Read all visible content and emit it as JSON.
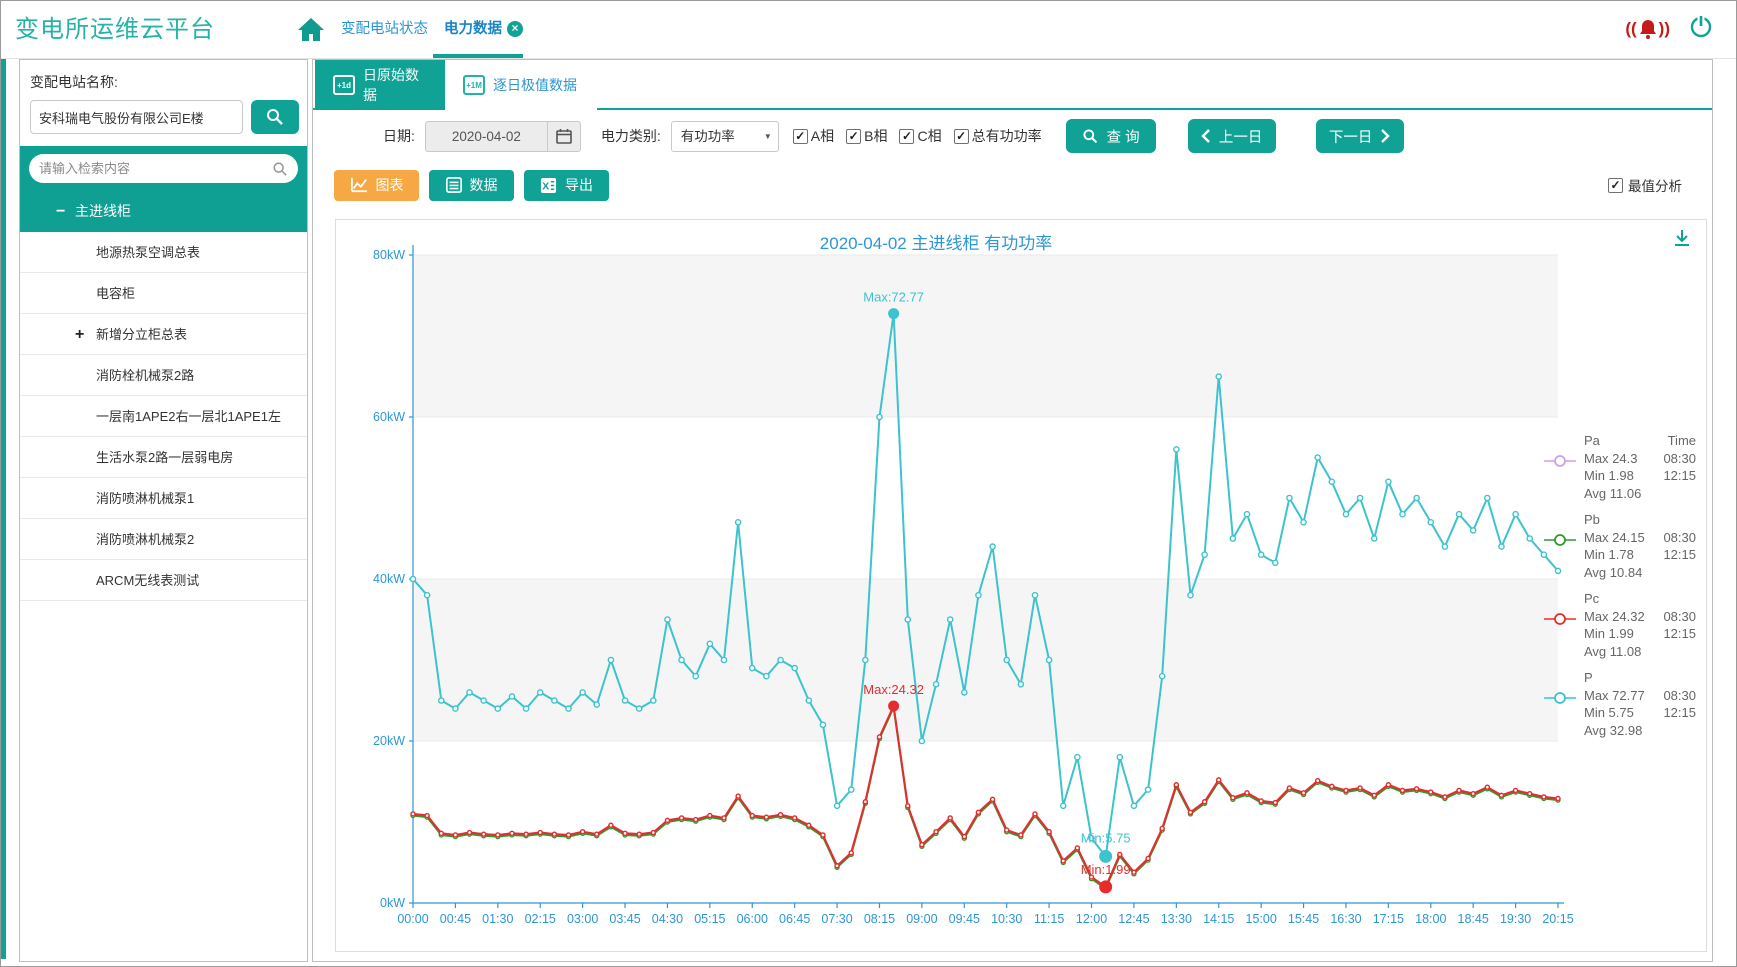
{
  "app": {
    "title": "变电所运维云平台"
  },
  "icons": {
    "minus": "−",
    "plus": "+",
    "check": "✓",
    "dropdown": "▼",
    "close": "×"
  },
  "header": {
    "tabs": [
      {
        "label": "变配电站状态",
        "active": false
      },
      {
        "label": "电力数据",
        "active": true,
        "closable": true
      }
    ]
  },
  "sidebar": {
    "station_label": "变配电站名称:",
    "station_value": "安科瑞电气股份有限公司E楼",
    "search_placeholder": "请输入检索内容",
    "tree": [
      {
        "label": "主进线柜",
        "active": true,
        "expander": "minus",
        "root": true
      },
      {
        "label": "地源热泵空调总表"
      },
      {
        "label": "电容柜"
      },
      {
        "label": "新增分立柜总表",
        "expander": "plus"
      },
      {
        "label": "消防栓机械泵2路"
      },
      {
        "label": "一层南1APE2右一层北1APE1左"
      },
      {
        "label": "生活水泵2路一层弱电房"
      },
      {
        "label": "消防喷淋机械泵1"
      },
      {
        "label": "消防喷淋机械泵2"
      },
      {
        "label": "ARCM无线表测试"
      }
    ]
  },
  "subtabs": [
    {
      "label": "日原始数据",
      "badge": "+1d",
      "active": true
    },
    {
      "label": "逐日极值数据",
      "badge": "+1M",
      "active": false
    }
  ],
  "filters": {
    "date_label": "日期:",
    "date_value": "2020-04-02",
    "category_label": "电力类别:",
    "category_value": "有功功率",
    "checkboxes": [
      {
        "label": "A相",
        "checked": true
      },
      {
        "label": "B相",
        "checked": true
      },
      {
        "label": "C相",
        "checked": true
      },
      {
        "label": "总有功功率",
        "checked": true
      }
    ],
    "query_button": "查 询",
    "prev_button": "上一日",
    "next_button": "下一日"
  },
  "actions": {
    "chart_button": "图表",
    "data_button": "数据",
    "export_button": "导出",
    "max_analysis_label": "最值分析",
    "max_analysis_checked": true
  },
  "chart_data": {
    "type": "line",
    "title": "2020-04-02  主进线柜  有功功率",
    "x_start": "00:00",
    "interval_minutes": 15,
    "x_tick_labels": [
      "00:00",
      "00:45",
      "01:30",
      "02:15",
      "03:00",
      "03:45",
      "04:30",
      "05:15",
      "06:00",
      "06:45",
      "07:30",
      "08:15",
      "09:00",
      "09:45",
      "10:30",
      "11:15",
      "12:00",
      "12:45",
      "13:30",
      "14:15",
      "15:00",
      "15:45",
      "16:30",
      "17:15",
      "18:00",
      "18:45",
      "19:30",
      "20:15"
    ],
    "y_tick_labels": [
      "0kW",
      "20kW",
      "40kW",
      "60kW",
      "80kW"
    ],
    "ylim": [
      0,
      80
    ],
    "grid_bands": "alternate",
    "axis_color": "#2e96d3",
    "series": [
      {
        "name": "Pa",
        "color": "#c9a0ea",
        "values": [
          11,
          10.8,
          8.6,
          8.4,
          8.7,
          8.5,
          8.4,
          8.6,
          8.5,
          8.7,
          8.5,
          8.4,
          8.8,
          8.5,
          9.6,
          8.6,
          8.5,
          8.7,
          10.2,
          10.5,
          10.3,
          10.8,
          10.5,
          13.2,
          10.8,
          10.6,
          10.9,
          10.5,
          9.6,
          8.4,
          4.6,
          6.2,
          12.5,
          20.5,
          24.3,
          12,
          7.2,
          8.8,
          10.5,
          8.2,
          11.2,
          12.8,
          9,
          8.4,
          11,
          8.8,
          5.2,
          6.8,
          3.2,
          1.98,
          6,
          3.8,
          5.5,
          9.2,
          14.6,
          11.2,
          12.5,
          15.2,
          13,
          13.6,
          12.6,
          12.4,
          14.2,
          13.6,
          15.1,
          14.4,
          13.9,
          14.2,
          13.3,
          14.6,
          13.9,
          14.1,
          13.7,
          13.1,
          13.9,
          13.5,
          14.3,
          13.3,
          13.9,
          13.5,
          13.1,
          12.9
        ]
      },
      {
        "name": "Pb",
        "color": "#2f9a2f",
        "values": [
          10.8,
          10.6,
          8.4,
          8.2,
          8.5,
          8.3,
          8.2,
          8.4,
          8.3,
          8.5,
          8.3,
          8.2,
          8.6,
          8.3,
          9.4,
          8.4,
          8.3,
          8.5,
          10,
          10.3,
          10.1,
          10.6,
          10.3,
          13,
          10.6,
          10.4,
          10.7,
          10.3,
          9.4,
          8.2,
          4.4,
          6,
          12.3,
          20.3,
          24.15,
          11.8,
          7,
          8.6,
          10.3,
          8,
          11,
          12.6,
          8.8,
          8.2,
          10.8,
          8.6,
          5,
          6.6,
          3,
          1.78,
          5.8,
          3.6,
          5.3,
          9,
          14.4,
          11,
          12.3,
          15,
          12.8,
          13.4,
          12.4,
          12.2,
          14,
          13.4,
          14.9,
          14.2,
          13.7,
          14,
          13.1,
          14.4,
          13.7,
          13.9,
          13.5,
          12.9,
          13.7,
          13.3,
          14.1,
          13.1,
          13.7,
          13.3,
          12.9,
          12.7
        ]
      },
      {
        "name": "Pc",
        "color": "#e82c2c",
        "values": [
          11,
          10.8,
          8.6,
          8.4,
          8.7,
          8.5,
          8.4,
          8.6,
          8.5,
          8.7,
          8.5,
          8.4,
          8.8,
          8.5,
          9.6,
          8.6,
          8.5,
          8.7,
          10.2,
          10.5,
          10.3,
          10.8,
          10.5,
          13.2,
          10.8,
          10.6,
          10.9,
          10.5,
          9.6,
          8.4,
          4.6,
          6.2,
          12.5,
          20.5,
          24.32,
          12,
          7.2,
          8.8,
          10.5,
          8.2,
          11.2,
          12.8,
          9,
          8.4,
          11,
          8.8,
          5.2,
          6.8,
          3.2,
          1.99,
          6,
          3.8,
          5.5,
          9.2,
          14.6,
          11.2,
          12.5,
          15.2,
          13,
          13.6,
          12.6,
          12.4,
          14.2,
          13.6,
          15.1,
          14.4,
          13.9,
          14.2,
          13.3,
          14.6,
          13.9,
          14.1,
          13.7,
          13.1,
          13.9,
          13.5,
          14.3,
          13.3,
          13.9,
          13.5,
          13.1,
          12.9
        ]
      },
      {
        "name": "P",
        "color": "#3cc3cd",
        "values": [
          40,
          38,
          25,
          24,
          26,
          25,
          24,
          25.5,
          24,
          26,
          25,
          24,
          26,
          24.5,
          30,
          25,
          24,
          25,
          35,
          30,
          28,
          32,
          30,
          47,
          29,
          28,
          30,
          29,
          25,
          22,
          12,
          14,
          30,
          60,
          72.77,
          35,
          20,
          27,
          35,
          26,
          38,
          44,
          30,
          27,
          38,
          30,
          12,
          18,
          8,
          5.75,
          18,
          12,
          14,
          28,
          56,
          38,
          43,
          65,
          45,
          48,
          43,
          42,
          50,
          47,
          55,
          52,
          48,
          50,
          45,
          52,
          48,
          50,
          47,
          44,
          48,
          46,
          50,
          44,
          48,
          45,
          43,
          41
        ]
      }
    ],
    "annotations": [
      {
        "text": "Max:72.77",
        "series": "P",
        "point_index": 34,
        "value": 72.77,
        "dy": -12
      },
      {
        "text": "Max:24.32",
        "series": "Pc",
        "point_index": 34,
        "value": 24.32,
        "dy": -12
      },
      {
        "text": "Min:5.75",
        "series": "P",
        "point_index": 49,
        "value": 5.75,
        "dy": -14
      },
      {
        "text": "Min:1.99",
        "series": "Pc",
        "point_index": 49,
        "value": 1.99,
        "dy": -13
      }
    ],
    "legend": {
      "time_header": "Time",
      "row_labels": [
        "Max",
        "Min",
        "Avg"
      ],
      "entries": [
        {
          "name": "Pa",
          "color": "#c9a0ea",
          "max": "24.3",
          "max_time": "08:30",
          "min": "1.98",
          "min_time": "12:15",
          "avg": "11.06"
        },
        {
          "name": "Pb",
          "color": "#2f9a2f",
          "max": "24.15",
          "max_time": "08:30",
          "min": "1.78",
          "min_time": "12:15",
          "avg": "10.84"
        },
        {
          "name": "Pc",
          "color": "#e82c2c",
          "max": "24.32",
          "max_time": "08:30",
          "min": "1.99",
          "min_time": "12:15",
          "avg": "11.08"
        },
        {
          "name": "P",
          "color": "#3cc3cd",
          "max": "72.77",
          "max_time": "08:30",
          "min": "5.75",
          "min_time": "12:15",
          "avg": "32.98"
        }
      ]
    }
  }
}
